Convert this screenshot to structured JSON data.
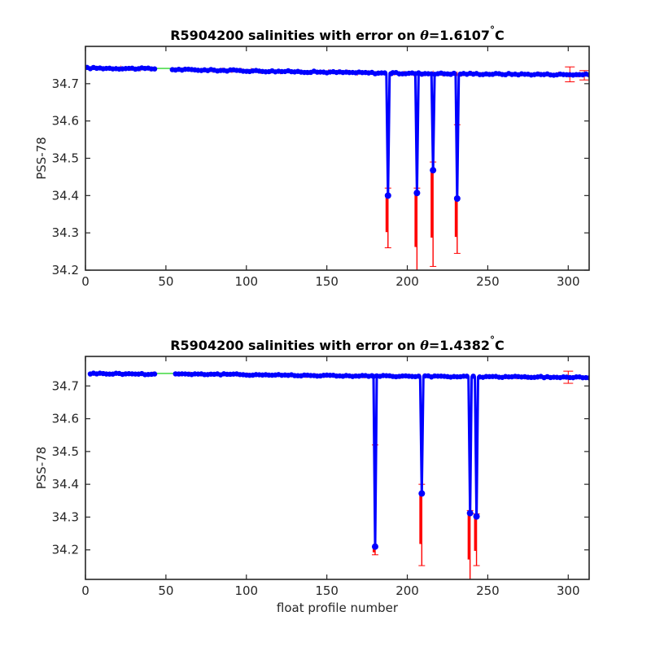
{
  "chart_data": [
    {
      "type": "line",
      "title": "R5904200 salinities with error on θ=1.6107°C",
      "title_parts": {
        "prefix": "R5904200 salinities with error on ",
        "symbol": "θ",
        "value": "=1.6107",
        "unit": "C",
        "degree": "°"
      },
      "xlabel": "",
      "ylabel": "PSS-78",
      "xlim": [
        0,
        313
      ],
      "ylim": [
        34.2,
        34.8
      ],
      "xticks": [
        0,
        50,
        100,
        150,
        200,
        250,
        300
      ],
      "yticks": [
        34.2,
        34.3,
        34.4,
        34.5,
        34.6,
        34.7
      ],
      "ytick_labels": [
        "34.2",
        "34.3",
        "34.4",
        "34.5",
        "34.6",
        "34.7"
      ],
      "grid": false,
      "baseline_segments": [
        {
          "x": [
            1,
            44
          ],
          "y": [
            34.742,
            34.74
          ]
        },
        {
          "x": [
            54,
            190
          ],
          "y": [
            34.738,
            34.728
          ]
        },
        {
          "x": [
            190,
            313
          ],
          "y": [
            34.728,
            34.724
          ]
        }
      ],
      "gap_line": {
        "x": [
          44,
          54
        ],
        "y": [
          34.741,
          34.741
        ]
      },
      "dips": [
        {
          "x": 188,
          "y": 34.4,
          "err": [
            34.26,
            34.42
          ]
        },
        {
          "x": 206,
          "y": 34.407,
          "err": [
            34.2,
            34.42
          ]
        },
        {
          "x": 216,
          "y": 34.468,
          "err": [
            34.21,
            34.49
          ]
        },
        {
          "x": 231,
          "y": 34.392,
          "err": [
            34.245,
            34.59
          ]
        }
      ],
      "end_errors": [
        {
          "x": 301,
          "y": 34.725,
          "err": [
            34.705,
            34.745
          ]
        },
        {
          "x": 310,
          "y": 34.722,
          "err": [
            34.71,
            34.735
          ]
        }
      ],
      "colors": {
        "series": "#0000ff",
        "error": "#ff0000",
        "gap": "#00cc00",
        "axes": "#262626"
      }
    },
    {
      "type": "line",
      "title": "R5904200 salinities with error on θ=1.4382°C",
      "title_parts": {
        "prefix": "R5904200 salinities with error on ",
        "symbol": "θ",
        "value": "=1.4382",
        "unit": "C",
        "degree": "°"
      },
      "xlabel": "float profile number",
      "ylabel": "PSS-78",
      "xlim": [
        0,
        313
      ],
      "ylim": [
        34.11,
        34.79
      ],
      "xticks": [
        0,
        50,
        100,
        150,
        200,
        250,
        300
      ],
      "yticks": [
        34.2,
        34.3,
        34.4,
        34.5,
        34.6,
        34.7
      ],
      "ytick_labels": [
        "34.2",
        "34.3",
        "34.4",
        "34.5",
        "34.6",
        "34.7"
      ],
      "grid": false,
      "baseline_segments": [
        {
          "x": [
            3,
            44
          ],
          "y": [
            34.738,
            34.736
          ]
        },
        {
          "x": [
            56,
            178
          ],
          "y": [
            34.737,
            34.73
          ]
        },
        {
          "x": [
            178,
            313
          ],
          "y": [
            34.73,
            34.726
          ]
        }
      ],
      "gap_line": {
        "x": [
          44,
          60
        ],
        "y": [
          34.738,
          34.738
        ]
      },
      "dips": [
        {
          "x": 180,
          "y": 34.21,
          "err": [
            34.185,
            34.52
          ]
        },
        {
          "x": 209,
          "y": 34.372,
          "err": [
            34.152,
            34.4
          ]
        },
        {
          "x": 239,
          "y": 34.312,
          "err": [
            34.11,
            34.32
          ]
        },
        {
          "x": 243,
          "y": 34.302,
          "err": [
            34.152,
            34.31
          ]
        }
      ],
      "end_errors": [
        {
          "x": 300,
          "y": 34.726,
          "err": [
            34.708,
            34.745
          ]
        }
      ],
      "colors": {
        "series": "#0000ff",
        "error": "#ff0000",
        "gap": "#00cc00",
        "axes": "#262626"
      }
    }
  ]
}
